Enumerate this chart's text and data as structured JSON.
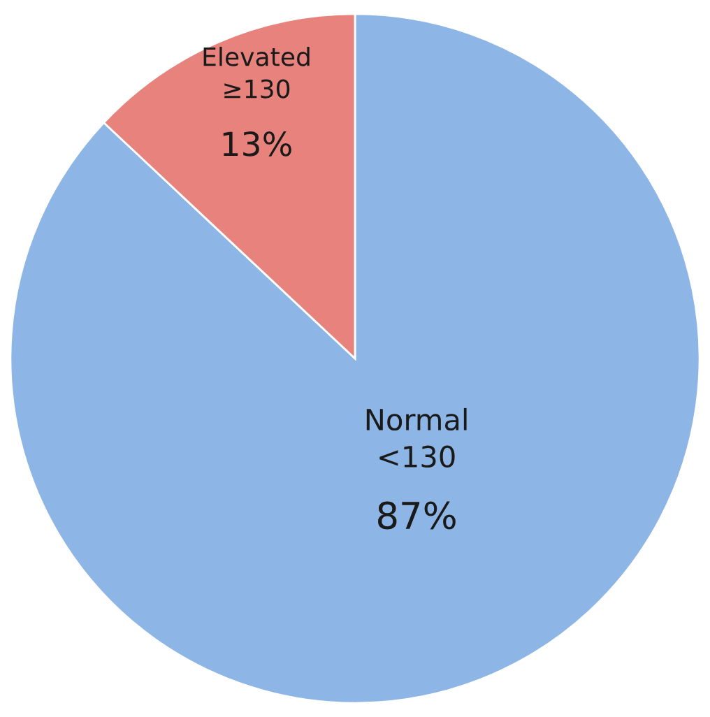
{
  "chart_data": {
    "type": "pie",
    "categories": [
      "Normal\n<130",
      "Elevated\n≥130"
    ],
    "values": [
      87,
      13
    ],
    "value_labels": [
      "87%",
      "13%"
    ],
    "colors": [
      "#8db6e6",
      "#e8827c"
    ]
  }
}
